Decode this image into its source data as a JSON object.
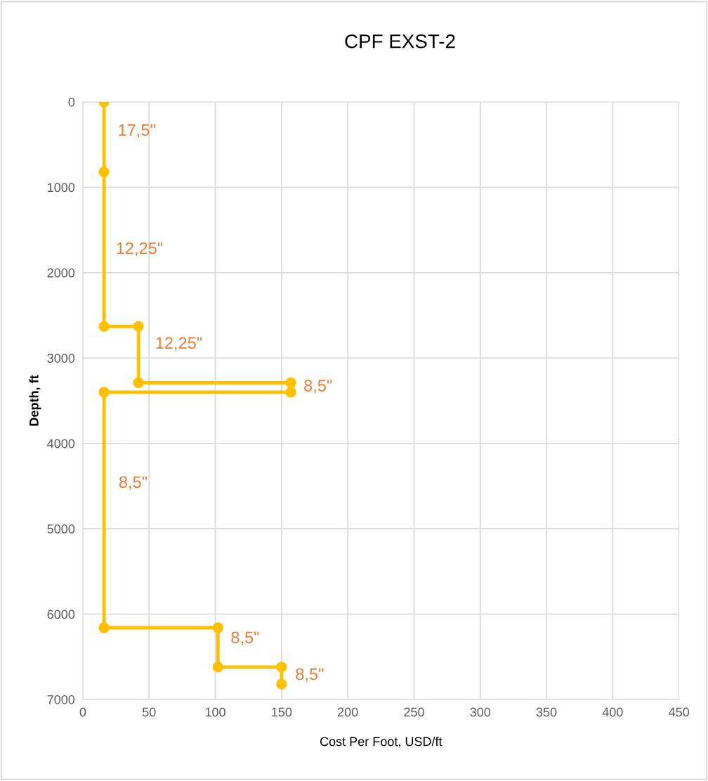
{
  "chart_data": {
    "type": "line",
    "title": "CPF EXST-2",
    "xlabel": "Cost Per Foot, USD/ft",
    "ylabel": "Depth, ft",
    "x": [
      16,
      16,
      16,
      42,
      42,
      157,
      157,
      16,
      16,
      102,
      102,
      150,
      150
    ],
    "series": [
      {
        "color": "#ffc000",
        "values": [
          0,
          820,
          2630,
          2630,
          3290,
          3290,
          3400,
          3400,
          6160,
          6160,
          6620,
          6620,
          6820
        ]
      }
    ],
    "xlim": [
      0,
      450
    ],
    "xticks": [
      0,
      50,
      100,
      150,
      200,
      250,
      300,
      350,
      400,
      450
    ],
    "ylim": [
      7000,
      0
    ],
    "yticks": [
      0,
      1000,
      2000,
      3000,
      4000,
      5000,
      6000,
      7000
    ],
    "grid": true,
    "marker": "circle",
    "line_style": "solid",
    "annotations": [
      {
        "text": "17,5\"",
        "x": 16,
        "y": 346
      },
      {
        "text": "12,25\"",
        "x": 16,
        "y": 1730
      },
      {
        "text": "12,25\"",
        "x": 42,
        "y": 2840
      },
      {
        "text": "8,5\"",
        "x": 157,
        "y": 3340
      },
      {
        "text": "8,5\"",
        "x": 16,
        "y": 4470
      },
      {
        "text": "8,5\"",
        "x": 102,
        "y": 6290
      },
      {
        "text": "8,5\"",
        "x": 150,
        "y": 6720
      }
    ]
  }
}
